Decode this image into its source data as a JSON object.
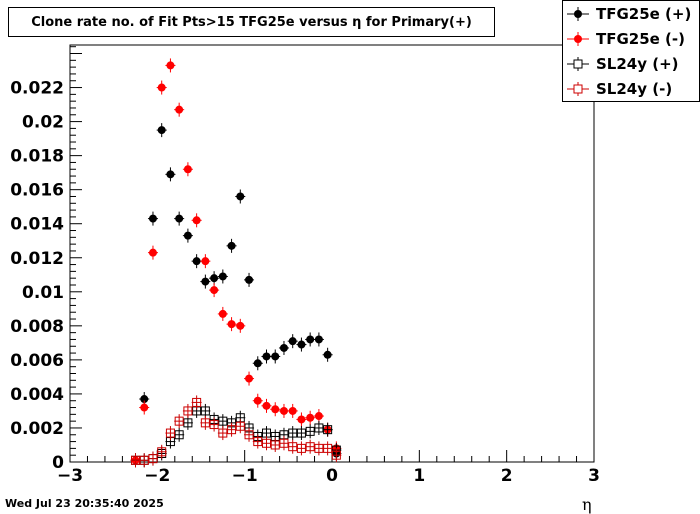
{
  "chart_data": {
    "type": "scatter",
    "title": "Clone rate no. of Fit Pts>15 TFG25e versus η for Primary(+)",
    "xlabel": "η",
    "xlim": [
      -3,
      3
    ],
    "ylim": [
      0,
      0.0245
    ],
    "x_ticks": [
      "−3",
      "−2",
      "−1",
      "0",
      "1",
      "2",
      "3"
    ],
    "y_ticks": [
      "0",
      "0.002",
      "0.004",
      "0.006",
      "0.008",
      "0.01",
      "0.012",
      "0.014",
      "0.016",
      "0.018",
      "0.02",
      "0.022"
    ],
    "legend_position": "top-right",
    "series": [
      {
        "name": "TFG25e (+)",
        "color": "#000000",
        "marker": "filled-circle",
        "points": [
          [
            -2.15,
            0.0037
          ],
          [
            -2.05,
            0.0143
          ],
          [
            -1.95,
            0.0195
          ],
          [
            -1.85,
            0.0169
          ],
          [
            -1.75,
            0.0143
          ],
          [
            -1.65,
            0.0133
          ],
          [
            -1.55,
            0.0118
          ],
          [
            -1.45,
            0.0106
          ],
          [
            -1.35,
            0.0108
          ],
          [
            -1.25,
            0.0109
          ],
          [
            -1.15,
            0.0127
          ],
          [
            -1.05,
            0.0156
          ],
          [
            -0.95,
            0.0107
          ],
          [
            -0.85,
            0.0058
          ],
          [
            -0.75,
            0.0062
          ],
          [
            -0.65,
            0.0062
          ],
          [
            -0.55,
            0.0067
          ],
          [
            -0.45,
            0.0071
          ],
          [
            -0.35,
            0.0069
          ],
          [
            -0.25,
            0.0072
          ],
          [
            -0.15,
            0.0072
          ],
          [
            -0.05,
            0.0063
          ],
          [
            0.05,
            0.0005
          ]
        ]
      },
      {
        "name": "TFG25e (-)",
        "color": "#ff0000",
        "marker": "filled-circle",
        "points": [
          [
            -2.25,
            0.0001
          ],
          [
            -2.15,
            0.0032
          ],
          [
            -2.05,
            0.0123
          ],
          [
            -1.95,
            0.022
          ],
          [
            -1.85,
            0.0233
          ],
          [
            -1.75,
            0.0207
          ],
          [
            -1.65,
            0.0172
          ],
          [
            -1.55,
            0.0142
          ],
          [
            -1.45,
            0.0118
          ],
          [
            -1.35,
            0.0101
          ],
          [
            -1.25,
            0.0087
          ],
          [
            -1.15,
            0.0081
          ],
          [
            -1.05,
            0.008
          ],
          [
            -0.95,
            0.0049
          ],
          [
            -0.85,
            0.0036
          ],
          [
            -0.75,
            0.0033
          ],
          [
            -0.65,
            0.0031
          ],
          [
            -0.55,
            0.003
          ],
          [
            -0.45,
            0.003
          ],
          [
            -0.35,
            0.0025
          ],
          [
            -0.25,
            0.0026
          ],
          [
            -0.15,
            0.0027
          ],
          [
            -0.05,
            0.0019
          ],
          [
            0.05,
            0.0008
          ]
        ]
      },
      {
        "name": "SL24y (+)",
        "color": "#000000",
        "marker": "open-square",
        "points": [
          [
            -2.25,
            0.0001
          ],
          [
            -2.15,
            0.0001
          ],
          [
            -2.05,
            0.0002
          ],
          [
            -1.95,
            0.0005
          ],
          [
            -1.85,
            0.0012
          ],
          [
            -1.75,
            0.0016
          ],
          [
            -1.65,
            0.0023
          ],
          [
            -1.55,
            0.003
          ],
          [
            -1.45,
            0.003
          ],
          [
            -1.35,
            0.0025
          ],
          [
            -1.25,
            0.0024
          ],
          [
            -1.15,
            0.0023
          ],
          [
            -1.05,
            0.0026
          ],
          [
            -0.95,
            0.002
          ],
          [
            -0.85,
            0.0015
          ],
          [
            -0.75,
            0.0017
          ],
          [
            -0.65,
            0.0015
          ],
          [
            -0.55,
            0.0016
          ],
          [
            -0.45,
            0.0017
          ],
          [
            -0.35,
            0.0017
          ],
          [
            -0.25,
            0.0018
          ],
          [
            -0.15,
            0.002
          ],
          [
            -0.05,
            0.0019
          ],
          [
            0.05,
            0.0007
          ]
        ]
      },
      {
        "name": "SL24y (-)",
        "color": "#cc0000",
        "marker": "open-square",
        "points": [
          [
            -2.25,
            0.0001
          ],
          [
            -2.15,
            0.0001
          ],
          [
            -2.05,
            0.0002
          ],
          [
            -1.95,
            0.0006
          ],
          [
            -1.85,
            0.0017
          ],
          [
            -1.75,
            0.0024
          ],
          [
            -1.65,
            0.003
          ],
          [
            -1.55,
            0.0035
          ],
          [
            -1.45,
            0.0023
          ],
          [
            -1.35,
            0.0022
          ],
          [
            -1.25,
            0.0017
          ],
          [
            -1.15,
            0.0019
          ],
          [
            -1.05,
            0.0021
          ],
          [
            -0.95,
            0.0016
          ],
          [
            -0.85,
            0.0012
          ],
          [
            -0.75,
            0.0011
          ],
          [
            -0.65,
            0.001
          ],
          [
            -0.55,
            0.0011
          ],
          [
            -0.45,
            0.0009
          ],
          [
            -0.35,
            0.0008
          ],
          [
            -0.25,
            0.0009
          ],
          [
            -0.15,
            0.0008
          ],
          [
            -0.05,
            0.0008
          ],
          [
            0.05,
            0.0004
          ]
        ]
      }
    ]
  },
  "timestamp": "Wed Jul 23 20:35:40 2025"
}
